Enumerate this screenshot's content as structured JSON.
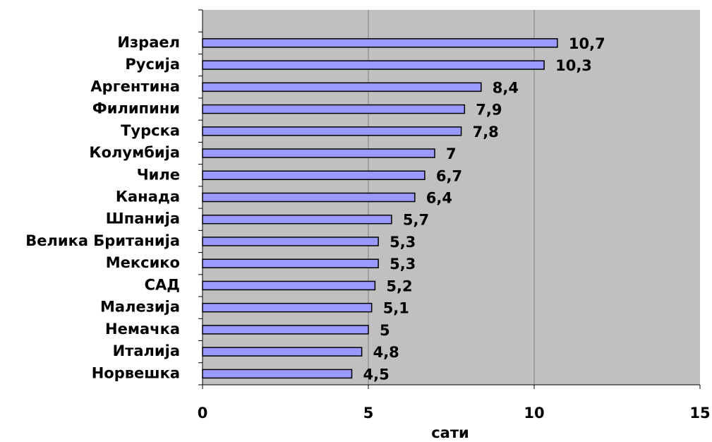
{
  "chart_data": {
    "type": "barh",
    "categories": [
      "Израел",
      "Русија",
      "Аргентина",
      "Филипини",
      "Турска",
      "Колумбија",
      "Чиле",
      "Канада",
      "Шпанија",
      "Велика Британија",
      "Мексико",
      "САД",
      "Малезија",
      "Немачка",
      "Италија",
      "Норвешка"
    ],
    "values": [
      10.7,
      10.3,
      8.4,
      7.9,
      7.8,
      7,
      6.7,
      6.4,
      5.7,
      5.3,
      5.3,
      5.2,
      5.1,
      5,
      4.8,
      4.5
    ],
    "value_labels": [
      "10,7",
      "10,3",
      "8,4",
      "7,9",
      "7,8",
      "7",
      "6,7",
      "6,4",
      "5,7",
      "5,3",
      "5,3",
      "5,2",
      "5,1",
      "5",
      "4,8",
      "4,5"
    ],
    "color": "#9999ff",
    "xlim": [
      0,
      15
    ],
    "xticks": [
      0,
      5,
      10,
      15
    ],
    "grid": true,
    "x_label": "сати"
  }
}
